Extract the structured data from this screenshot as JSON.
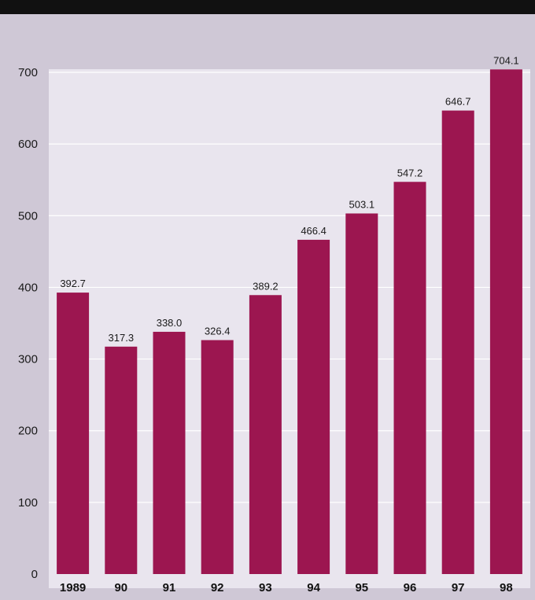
{
  "colors": {
    "bar": "#9c1650",
    "plot_background": "#e9e5ee",
    "frame_background": "#cfc8d6",
    "gridline": "#ffffff"
  },
  "chart_data": {
    "type": "bar",
    "categories": [
      "1989",
      "90",
      "91",
      "92",
      "93",
      "94",
      "95",
      "96",
      "97",
      "98"
    ],
    "values": [
      392.7,
      317.3,
      338.0,
      326.4,
      389.2,
      466.4,
      503.1,
      547.2,
      646.7,
      704.1
    ],
    "value_labels": [
      "392.7",
      "317.3",
      "338.0",
      "326.4",
      "389.2",
      "466.4",
      "503.1",
      "547.2",
      "646.7",
      "704.1"
    ],
    "ylim": [
      0,
      700
    ],
    "yticks": [
      0,
      100,
      200,
      300,
      400,
      500,
      600,
      700
    ],
    "grid": true
  }
}
